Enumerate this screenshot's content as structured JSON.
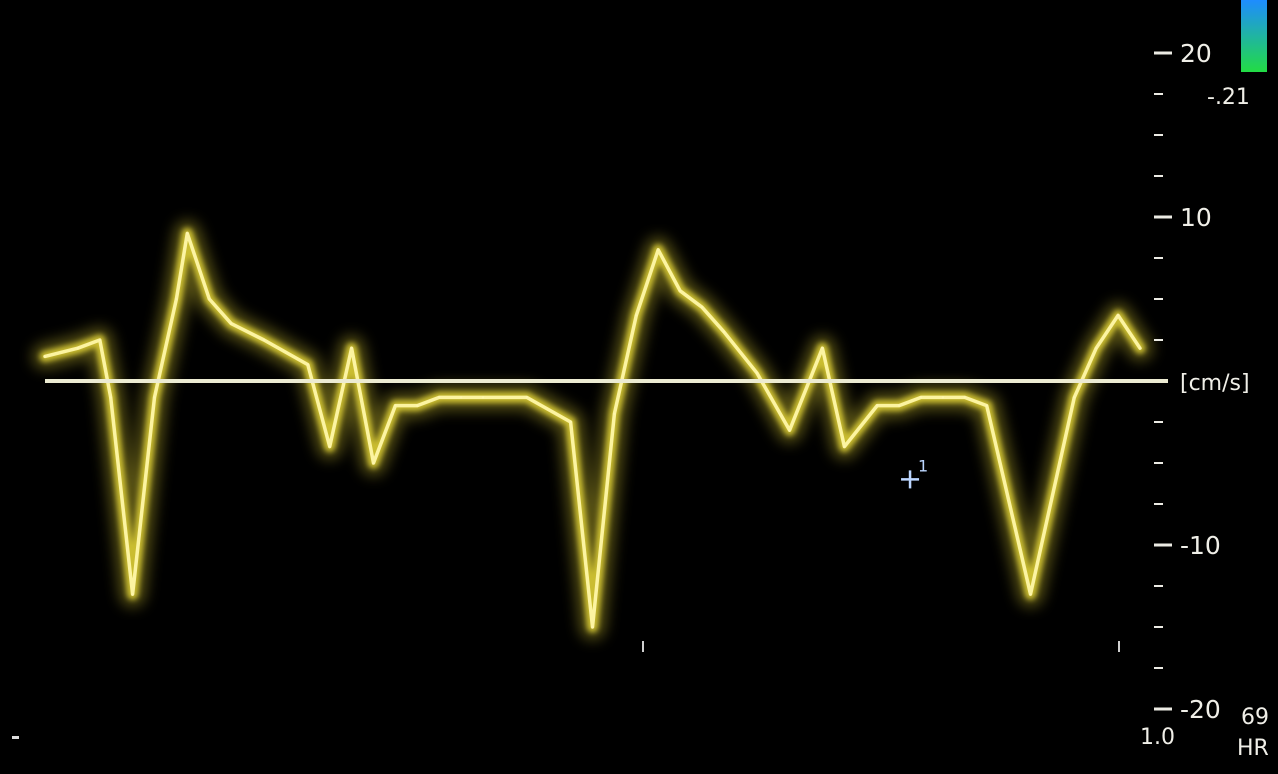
{
  "chart_data": {
    "type": "line",
    "y_unit_label": "[cm/s]",
    "ylim": [
      -20,
      20
    ],
    "y_major_ticks": [
      "20",
      "10",
      "-10",
      "-20"
    ],
    "y_major_values": [
      20,
      10,
      -10,
      -20
    ],
    "y_minor_step": 2.5,
    "series": [
      {
        "color": "#f2e23a",
        "x": [
          0,
          0.03,
          0.05,
          0.06,
          0.08,
          0.1,
          0.12,
          0.13,
          0.15,
          0.17,
          0.2,
          0.24,
          0.26,
          0.28,
          0.3,
          0.32,
          0.34,
          0.36,
          0.38,
          0.4,
          0.44,
          0.48,
          0.5,
          0.52,
          0.54,
          0.56,
          0.58,
          0.6,
          0.62,
          0.65,
          0.68,
          0.71,
          0.73,
          0.76,
          0.78,
          0.8,
          0.82,
          0.84,
          0.86,
          0.9,
          0.94,
          0.96,
          0.98,
          1.0
        ],
        "y": [
          1.5,
          2,
          2.5,
          -1,
          -13,
          -1,
          5,
          9,
          5,
          3.5,
          2.5,
          1,
          -4,
          2,
          -5,
          -1.5,
          -1.5,
          -1,
          -1,
          -1,
          -1,
          -2.5,
          -15,
          -2,
          4,
          8,
          5.5,
          4.5,
          3,
          0.5,
          -3,
          2,
          -4,
          -1.5,
          -1.5,
          -1,
          -1,
          -1,
          -1.5,
          -13,
          -1,
          2,
          4,
          2
        ]
      }
    ],
    "markers": [
      {
        "label": "1",
        "x": 0.79,
        "y": -6
      }
    ]
  },
  "color_bar": {
    "value": "-.21",
    "top_color": "#1e8cff",
    "bottom_color": "#22dc44"
  },
  "readouts": {
    "hr_value": "69",
    "hr_label": "HR",
    "depth_value": "1.0"
  },
  "colors": {
    "background": "#000000",
    "trace": "#f2e23a",
    "baseline": "#ecebd2",
    "scale_text": "#f0efe8"
  }
}
